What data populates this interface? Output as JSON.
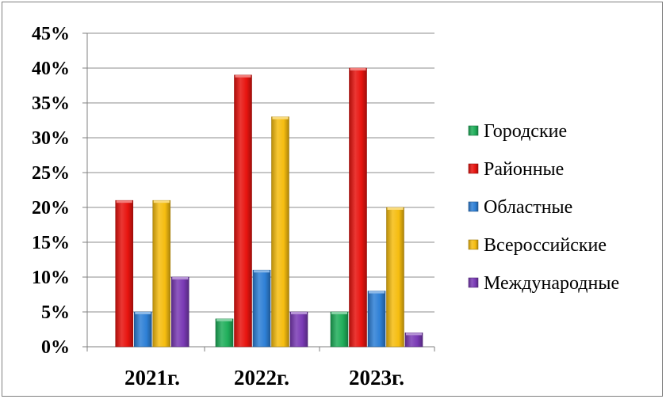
{
  "chart_data": {
    "type": "bar",
    "categories": [
      "2021г.",
      "2022г.",
      "2023г."
    ],
    "series": [
      {
        "name": "Городские",
        "values": [
          0,
          4,
          5
        ],
        "color": "#1fae5a"
      },
      {
        "name": "Районные",
        "values": [
          21,
          39,
          40
        ],
        "color": "#e8140f"
      },
      {
        "name": "Областные",
        "values": [
          5,
          11,
          8
        ],
        "color": "#2e80d6"
      },
      {
        "name": "Всероссийские",
        "values": [
          21,
          33,
          20
        ],
        "color": "#f6bd10"
      },
      {
        "name": "Международные",
        "values": [
          10,
          5,
          2
        ],
        "color": "#7a3ab5"
      }
    ],
    "yticks": [
      "0%",
      "5%",
      "10%",
      "15%",
      "20%",
      "25%",
      "30%",
      "35%",
      "40%",
      "45%"
    ],
    "ylim": [
      0,
      45
    ],
    "grid": true,
    "legend_position": "right",
    "title": "",
    "xlabel": "",
    "ylabel": ""
  }
}
